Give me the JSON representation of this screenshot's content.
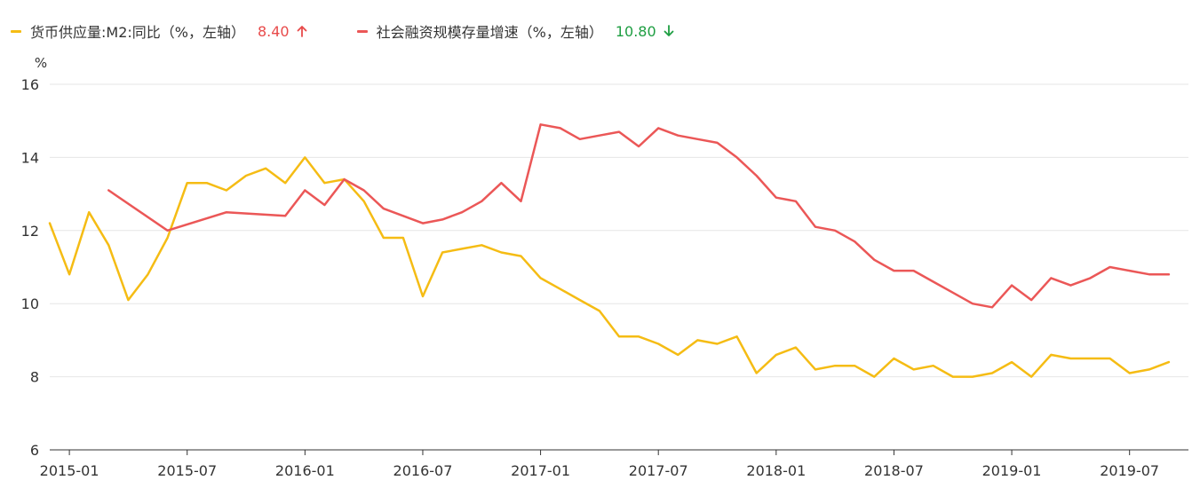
{
  "legend": [
    {
      "label": "货币供应量:M2:同比（%，左轴）",
      "value": "8.40",
      "trend": "up"
    },
    {
      "label": "社会融资规模存量增速（%，左轴）",
      "value": "10.80",
      "trend": "down"
    }
  ],
  "colors": {
    "m2": "#F5BC14",
    "tsf": "#EB5757",
    "up": "#E84A4A",
    "down": "#1E9E42",
    "axis": "#333333",
    "grid": "#E6E6E6"
  },
  "chart_data": {
    "type": "line",
    "title": "",
    "xlabel": "",
    "ylabel": "%",
    "ylim": [
      6,
      16
    ],
    "yticks": [
      6,
      8,
      10,
      12,
      14,
      16
    ],
    "xlim": [
      "2014-12",
      "2019-10"
    ],
    "xticks": [
      "2015-01",
      "2015-07",
      "2016-01",
      "2016-07",
      "2017-01",
      "2017-07",
      "2018-01",
      "2018-07",
      "2019-01",
      "2019-07"
    ],
    "grid": true,
    "legend_position": "top-left",
    "series": [
      {
        "name": "货币供应量:M2:同比（%，左轴）",
        "x": [
          "2014-12",
          "2015-01",
          "2015-02",
          "2015-03",
          "2015-04",
          "2015-05",
          "2015-06",
          "2015-07",
          "2015-08",
          "2015-09",
          "2015-10",
          "2015-11",
          "2015-12",
          "2016-01",
          "2016-02",
          "2016-03",
          "2016-04",
          "2016-05",
          "2016-06",
          "2016-07",
          "2016-08",
          "2016-09",
          "2016-10",
          "2016-11",
          "2016-12",
          "2017-01",
          "2017-02",
          "2017-03",
          "2017-04",
          "2017-05",
          "2017-06",
          "2017-07",
          "2017-08",
          "2017-09",
          "2017-10",
          "2017-11",
          "2017-12",
          "2018-01",
          "2018-02",
          "2018-03",
          "2018-04",
          "2018-05",
          "2018-06",
          "2018-07",
          "2018-08",
          "2018-09",
          "2018-10",
          "2018-11",
          "2018-12",
          "2019-01",
          "2019-02",
          "2019-03",
          "2019-04",
          "2019-05",
          "2019-06",
          "2019-07",
          "2019-08",
          "2019-09"
        ],
        "values": [
          12.2,
          10.8,
          12.5,
          11.6,
          10.1,
          10.8,
          11.8,
          13.3,
          13.3,
          13.1,
          13.5,
          13.7,
          13.3,
          14.0,
          13.3,
          13.4,
          12.8,
          11.8,
          11.8,
          10.2,
          11.4,
          11.5,
          11.6,
          11.4,
          11.3,
          10.7,
          10.4,
          10.1,
          9.8,
          9.1,
          9.1,
          8.9,
          8.6,
          9.0,
          8.9,
          9.1,
          8.1,
          8.6,
          8.8,
          8.2,
          8.3,
          8.3,
          8.0,
          8.5,
          8.2,
          8.3,
          8.0,
          8.0,
          8.1,
          8.4,
          8.0,
          8.6,
          8.5,
          8.5,
          8.5,
          8.1,
          8.2,
          8.4
        ]
      },
      {
        "name": "社会融资规模存量增速（%，左轴）",
        "x": [
          "2015-03",
          "2015-06",
          "2015-09",
          "2015-12",
          "2016-01",
          "2016-02",
          "2016-03",
          "2016-04",
          "2016-05",
          "2016-06",
          "2016-07",
          "2016-08",
          "2016-09",
          "2016-10",
          "2016-11",
          "2016-12",
          "2017-01",
          "2017-02",
          "2017-03",
          "2017-04",
          "2017-05",
          "2017-06",
          "2017-07",
          "2017-08",
          "2017-09",
          "2017-10",
          "2017-11",
          "2017-12",
          "2018-01",
          "2018-02",
          "2018-03",
          "2018-04",
          "2018-05",
          "2018-06",
          "2018-07",
          "2018-08",
          "2018-09",
          "2018-10",
          "2018-11",
          "2018-12",
          "2019-01",
          "2019-02",
          "2019-03",
          "2019-04",
          "2019-05",
          "2019-06",
          "2019-07",
          "2019-08",
          "2019-09"
        ],
        "values": [
          13.1,
          12.0,
          12.5,
          12.4,
          13.1,
          12.7,
          13.4,
          13.1,
          12.6,
          12.4,
          12.2,
          12.3,
          12.5,
          12.8,
          13.3,
          12.8,
          14.9,
          14.8,
          14.5,
          14.6,
          14.7,
          14.3,
          14.8,
          14.6,
          14.5,
          14.4,
          14.0,
          13.5,
          12.9,
          12.8,
          12.1,
          12.0,
          11.7,
          11.2,
          10.9,
          10.9,
          10.6,
          10.3,
          10.0,
          9.9,
          10.5,
          10.1,
          10.7,
          10.5,
          10.7,
          11.0,
          10.9,
          10.8,
          10.8
        ]
      }
    ]
  }
}
